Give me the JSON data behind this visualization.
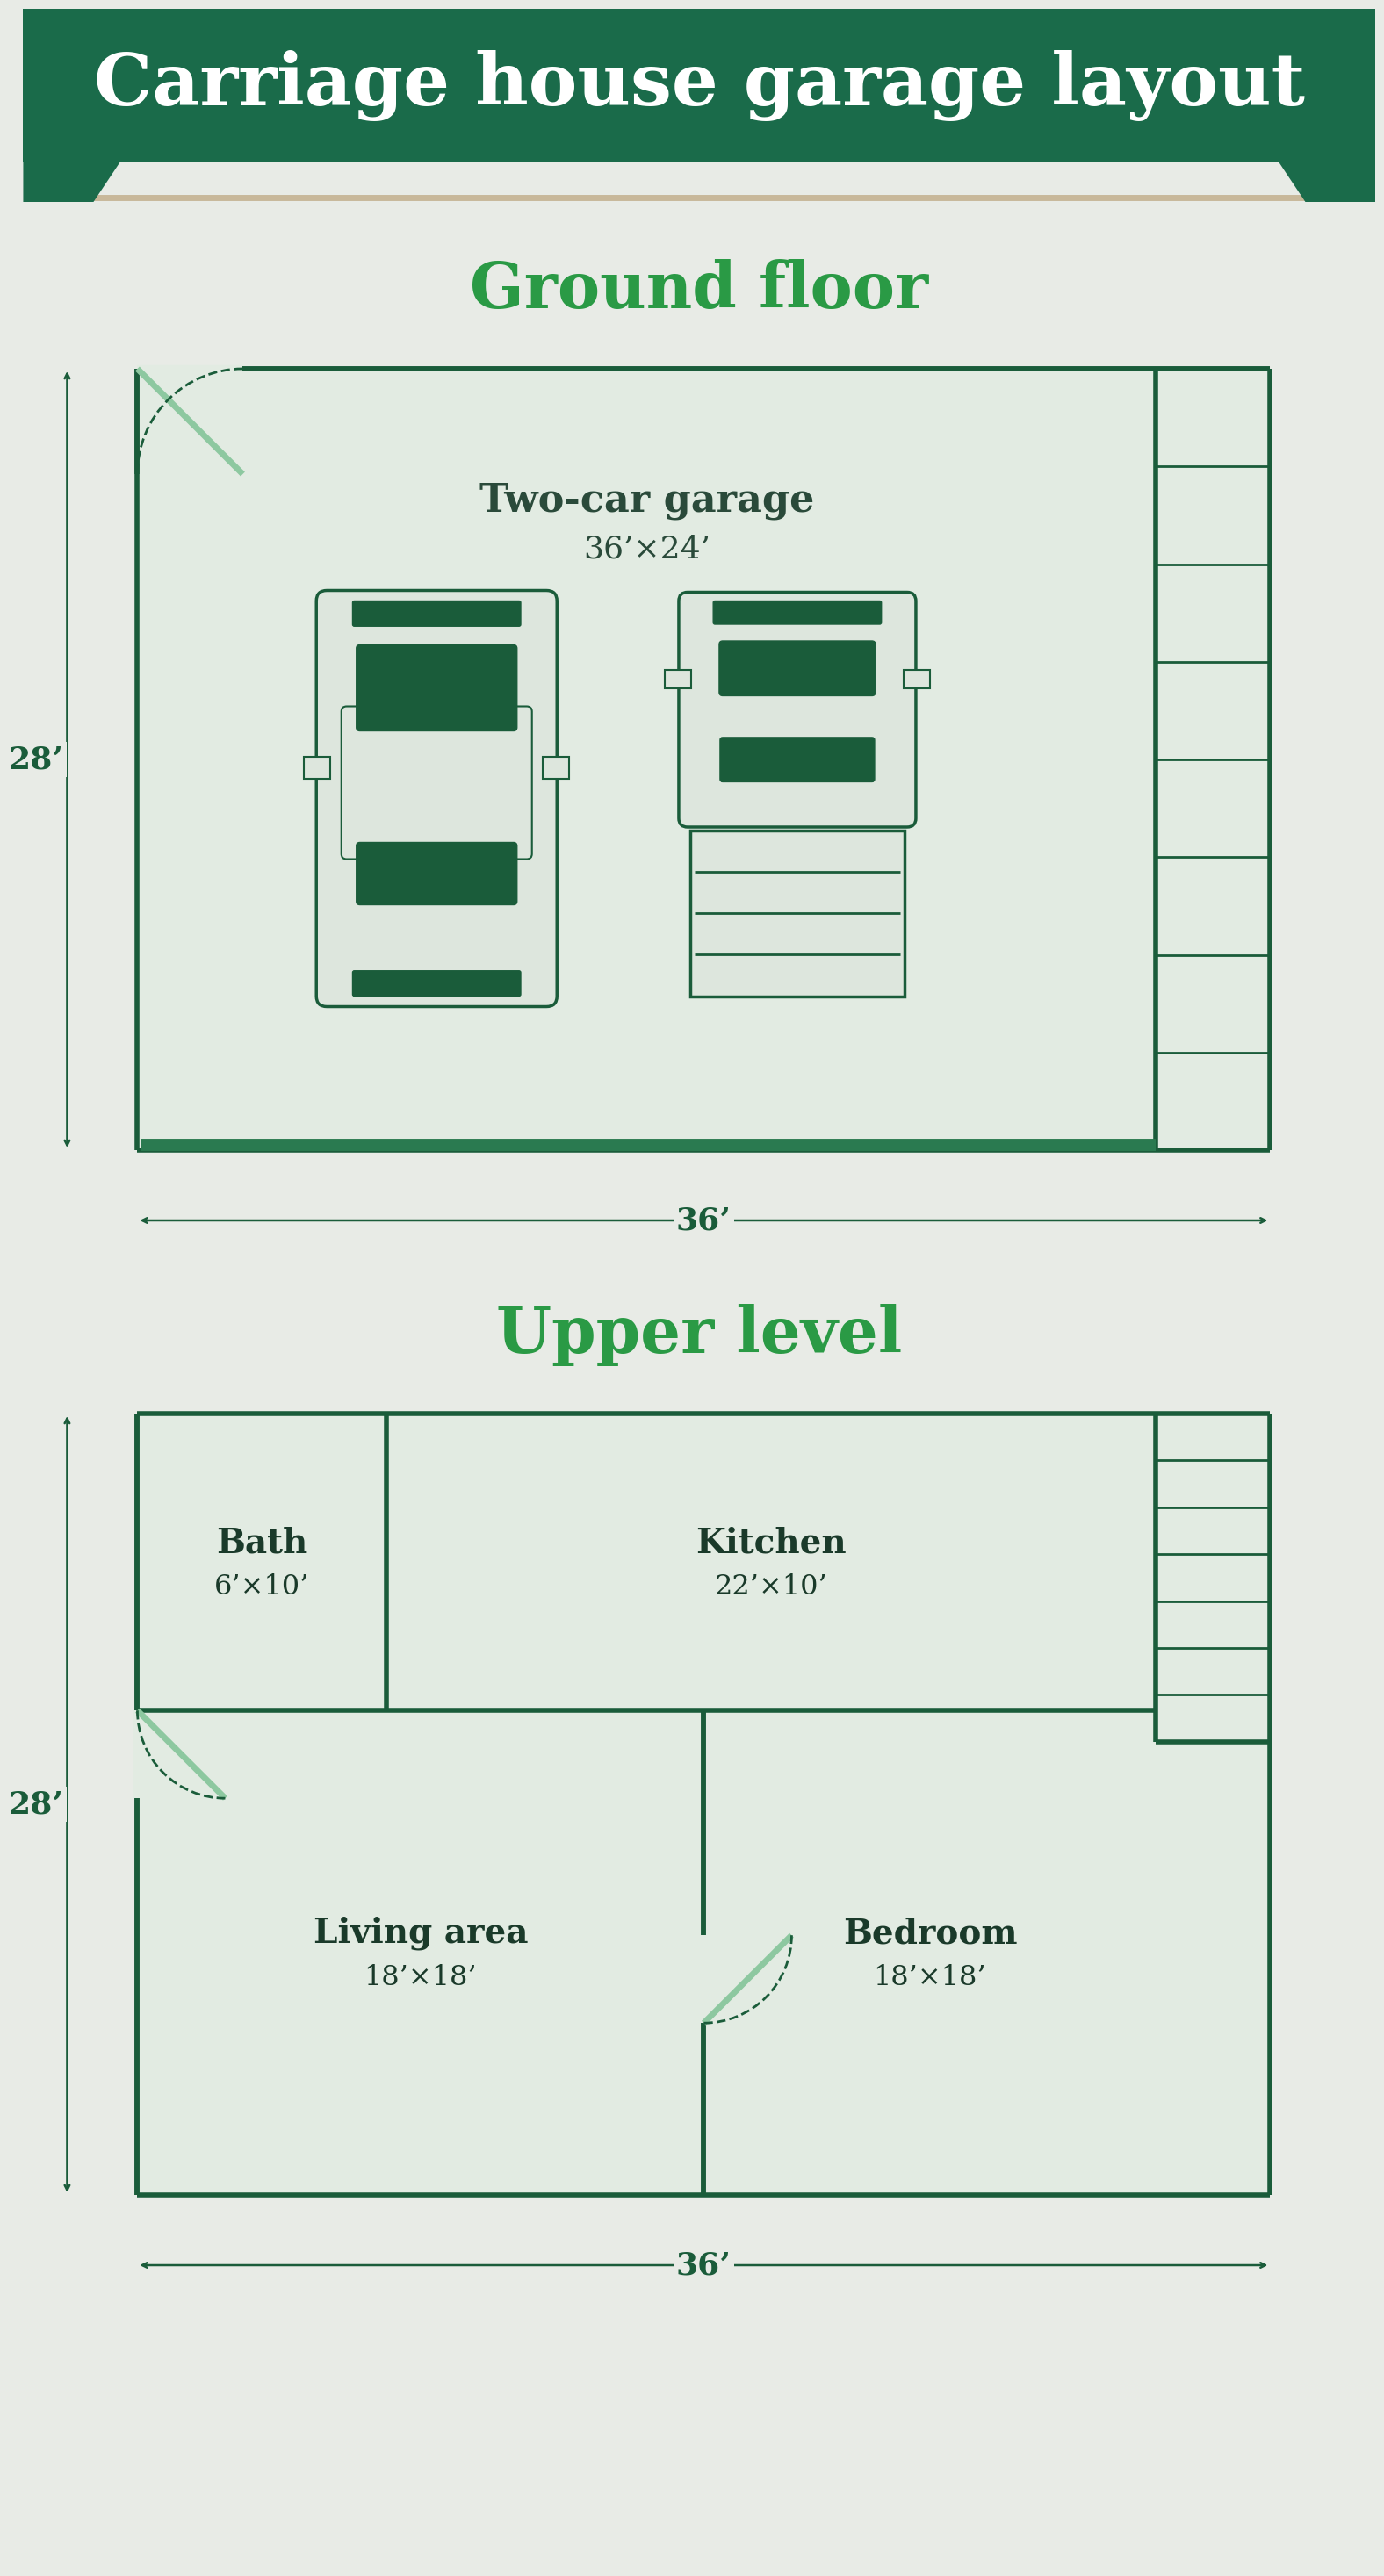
{
  "title": "Carriage house garage layout",
  "title_color": "#ffffff",
  "header_bg": "#1a6b4a",
  "bg_color": "#e8ebe6",
  "accent_line": "#c8b89a",
  "dark_green": "#1a5c3a",
  "medium_green": "#2a7a50",
  "light_green": "#e2ebe2",
  "car_body": "#dde6dd",
  "car_dark": "#1a5c3a",
  "wall_color": "#1a5c3a",
  "wall_lw": 4.0,
  "section_title_color": "#2a9a45",
  "dim_color": "#1a5c3a",
  "ground_floor_title": "Ground floor",
  "upper_level_title": "Upper level",
  "garage_label": "Two-car garage",
  "garage_dim": "36’×24’",
  "garage_width_dim": "36’",
  "garage_height_dim": "28’",
  "upper_width_dim": "36’",
  "upper_height_dim": "28’",
  "bath_label": "Bath",
  "bath_dim": "6’×10’",
  "kitchen_label": "Kitchen",
  "kitchen_dim": "22’×10’",
  "living_label": "Living area",
  "living_dim": "18’×18’",
  "bedroom_label": "Bedroom",
  "bedroom_dim": "18’×18’"
}
